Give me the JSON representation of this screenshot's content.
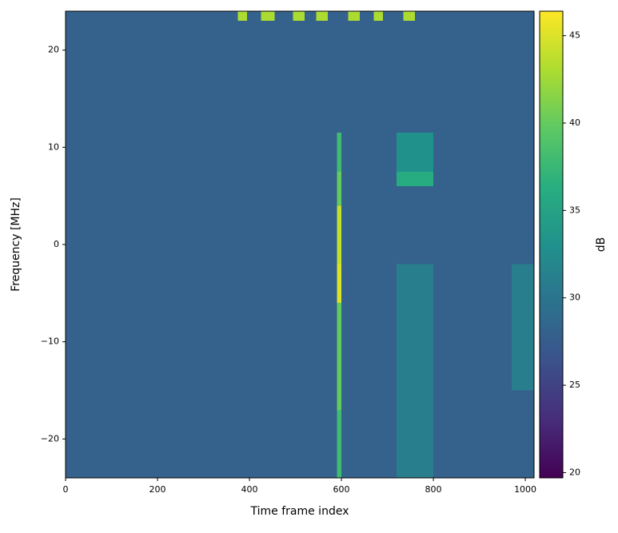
{
  "chart_data": {
    "type": "heatmap",
    "xlabel": "Time frame index",
    "ylabel": "Frequency [MHz]",
    "colorbar_label": "dB",
    "colormap": "viridis",
    "x": [
      0,
      375,
      395,
      425,
      455,
      495,
      520,
      545,
      570,
      590,
      600,
      615,
      640,
      670,
      690,
      720,
      735,
      760,
      800,
      970,
      1020
    ],
    "y": [
      -24,
      -17,
      -15,
      -6,
      -2,
      4,
      6,
      7.5,
      11.5,
      23,
      24
    ],
    "z": [
      [
        28,
        28,
        28,
        28,
        28,
        28,
        28,
        28,
        28,
        38,
        28,
        28,
        28,
        28,
        28,
        31,
        31,
        31,
        28,
        28
      ],
      [
        28,
        28,
        28,
        28,
        28,
        28,
        28,
        28,
        28,
        40,
        28,
        28,
        28,
        28,
        28,
        31,
        31,
        31,
        28,
        28
      ],
      [
        28,
        28,
        28,
        28,
        28,
        28,
        28,
        28,
        28,
        40,
        28,
        28,
        28,
        28,
        28,
        31,
        31,
        31,
        28,
        31
      ],
      [
        28,
        28,
        28,
        28,
        28,
        28,
        28,
        28,
        28,
        45,
        28,
        28,
        28,
        28,
        28,
        31,
        31,
        31,
        28,
        31
      ],
      [
        28,
        28,
        28,
        28,
        28,
        28,
        28,
        28,
        28,
        44,
        28,
        28,
        28,
        28,
        28,
        28,
        28,
        28,
        28,
        28
      ],
      [
        28,
        28,
        28,
        28,
        28,
        28,
        28,
        28,
        28,
        40,
        28,
        28,
        28,
        28,
        28,
        28,
        28,
        28,
        28,
        28
      ],
      [
        28,
        28,
        28,
        28,
        28,
        28,
        28,
        28,
        28,
        40,
        28,
        28,
        28,
        28,
        28,
        36,
        36,
        36,
        28,
        28
      ],
      [
        28,
        28,
        28,
        28,
        28,
        28,
        28,
        28,
        28,
        38,
        28,
        28,
        28,
        28,
        28,
        33,
        33,
        33,
        28,
        28
      ],
      [
        28,
        28,
        28,
        28,
        28,
        28,
        28,
        28,
        28,
        28,
        28,
        28,
        28,
        28,
        28,
        28,
        28,
        28,
        28,
        28
      ],
      [
        28,
        43,
        28,
        43,
        28,
        43,
        28,
        43,
        28,
        28,
        28,
        43,
        28,
        43,
        28,
        28,
        43,
        28,
        28,
        28
      ]
    ],
    "xlim": [
      0,
      1019
    ],
    "xticks": [
      0,
      200,
      400,
      600,
      800,
      1000
    ],
    "ylim": [
      -24,
      24
    ],
    "yticks": [
      {
        "value": -20,
        "label": "−20"
      },
      {
        "value": -10,
        "label": "−10"
      },
      0,
      10,
      20
    ],
    "zlim": [
      19.7,
      46.4
    ],
    "zticks": [
      20,
      25,
      30,
      35,
      40,
      45
    ]
  }
}
